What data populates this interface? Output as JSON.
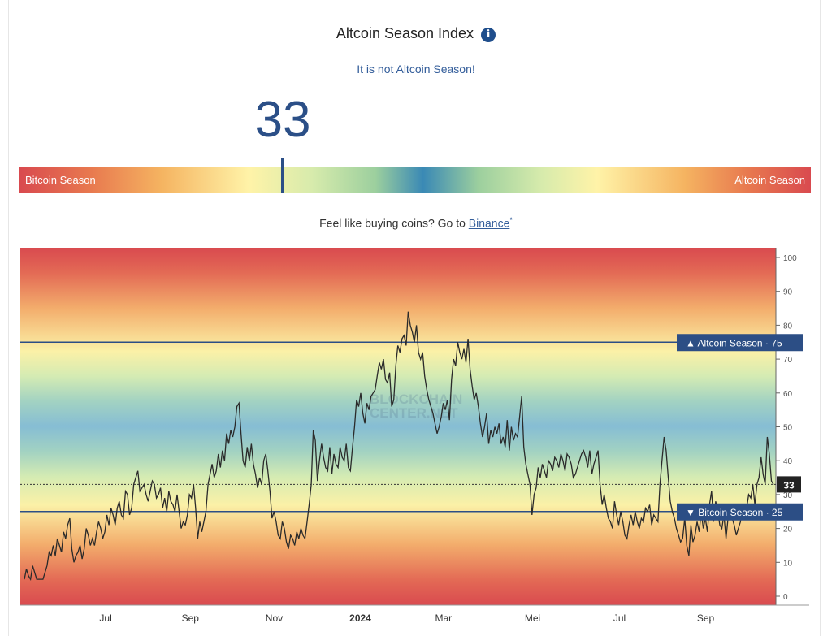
{
  "header": {
    "title": "Altcoin Season Index",
    "info_icon": "info-icon",
    "status": "It is not Altcoin Season!",
    "value": "33"
  },
  "gauge": {
    "left_label": "Bitcoin Season",
    "right_label": "Altcoin Season",
    "value": 33
  },
  "promo": {
    "text": "Feel like buying coins? Go to ",
    "link": "Binance",
    "mark": "*"
  },
  "chart_data": {
    "type": "line",
    "watermark": "BLOCKCHAIN CENTER.NET",
    "ylim": [
      0,
      100
    ],
    "y_ticks": [
      0,
      10,
      20,
      30,
      40,
      50,
      60,
      70,
      80,
      90,
      100
    ],
    "x_ticks": [
      {
        "label": "Jul",
        "bold": false,
        "t": 0.113
      },
      {
        "label": "Sep",
        "bold": false,
        "t": 0.225
      },
      {
        "label": "Nov",
        "bold": false,
        "t": 0.336
      },
      {
        "label": "2024",
        "bold": true,
        "t": 0.45
      },
      {
        "label": "Mar",
        "bold": false,
        "t": 0.56
      },
      {
        "label": "Mei",
        "bold": false,
        "t": 0.678
      },
      {
        "label": "Jul",
        "bold": false,
        "t": 0.793
      },
      {
        "label": "Sep",
        "bold": false,
        "t": 0.907
      }
    ],
    "reference_lines": [
      {
        "label": "▲ Altcoin Season",
        "value": 75
      },
      {
        "label": "▼ Bitcoin Season",
        "value": 25
      }
    ],
    "current": {
      "label": "33",
      "value": 33
    },
    "series": [
      {
        "values": [
          5,
          8,
          6,
          5,
          9,
          7,
          5,
          5,
          5,
          5,
          7,
          9,
          13,
          12,
          15,
          12,
          17,
          15,
          13,
          19,
          17,
          21,
          23,
          14,
          10,
          12,
          13,
          15,
          11,
          14,
          20,
          18,
          15,
          17,
          15,
          19,
          22,
          20,
          17,
          19,
          24,
          21,
          26,
          24,
          21,
          26,
          28,
          24,
          23,
          31,
          30,
          24,
          26,
          33,
          35,
          37,
          31,
          32,
          33,
          30,
          28,
          31,
          34,
          33,
          29,
          30,
          32,
          26,
          29,
          25,
          31,
          28,
          27,
          25,
          30,
          25,
          20,
          22,
          21,
          24,
          30,
          29,
          33,
          26,
          17,
          22,
          19,
          22,
          25,
          33,
          36,
          39,
          35,
          37,
          42,
          38,
          43,
          40,
          48,
          45,
          49,
          47,
          50,
          56,
          57,
          48,
          40,
          38,
          44,
          40,
          45,
          39,
          36,
          32,
          35,
          33,
          40,
          42,
          37,
          31,
          23,
          25,
          22,
          18,
          17,
          22,
          20,
          16,
          14,
          18,
          17,
          15,
          19,
          17,
          20,
          18,
          17,
          22,
          27,
          33,
          49,
          46,
          34,
          40,
          45,
          41,
          38,
          37,
          44,
          36,
          42,
          39,
          38,
          44,
          41,
          40,
          45,
          38,
          37,
          44,
          50,
          58,
          56,
          60,
          54,
          51,
          57,
          55,
          59,
          60,
          61,
          65,
          69,
          67,
          70,
          64,
          63,
          66,
          56,
          58,
          68,
          74,
          72,
          76,
          77,
          74,
          84,
          80,
          78,
          75,
          80,
          72,
          70,
          72,
          65,
          61,
          58,
          56,
          54,
          51,
          48,
          50,
          53,
          57,
          55,
          58,
          52,
          64,
          70,
          68,
          75,
          72,
          70,
          73,
          69,
          76,
          67,
          62,
          58,
          60,
          56,
          51,
          47,
          50,
          54,
          45,
          49,
          47,
          50,
          48,
          51,
          45,
          47,
          44,
          52,
          43,
          50,
          46,
          48,
          47,
          53,
          59,
          44,
          39,
          36,
          33,
          24,
          30,
          32,
          38,
          35,
          39,
          37,
          35,
          40,
          39,
          37,
          41,
          40,
          38,
          42,
          40,
          37,
          42,
          41,
          39,
          35,
          36,
          38,
          40,
          42,
          43,
          41,
          38,
          43,
          36,
          39,
          41,
          43,
          33,
          27,
          30,
          26,
          23,
          22,
          20,
          28,
          24,
          21,
          25,
          22,
          18,
          17,
          21,
          24,
          21,
          25,
          22,
          20,
          23,
          22,
          26,
          25,
          27,
          21,
          24,
          23,
          22,
          33,
          40,
          47,
          43,
          35,
          28,
          25,
          23,
          20,
          18,
          16,
          17,
          23,
          15,
          12,
          21,
          16,
          18,
          22,
          19,
          25,
          20,
          23,
          19,
          27,
          31,
          22,
          28,
          25,
          21,
          20,
          24,
          17,
          23,
          26,
          23,
          21,
          18,
          20,
          22,
          27,
          25,
          26,
          30,
          29,
          33,
          27,
          33,
          35,
          41,
          36,
          33,
          47,
          42,
          34,
          33
        ]
      }
    ]
  }
}
